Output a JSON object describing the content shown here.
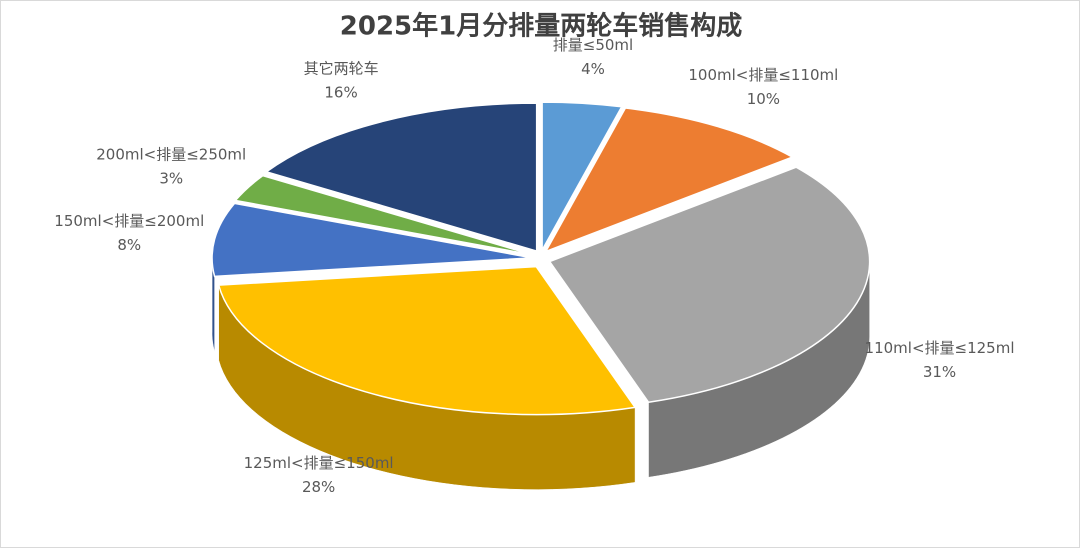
{
  "chart_data": {
    "type": "pie",
    "title": "2025年1月分排量两轮车销售构成",
    "categories": [
      "排量≤50ml",
      "100ml<排量≤110ml",
      "110ml<排量≤125ml",
      "125ml<排量≤150ml",
      "150ml<排量≤200ml",
      "200ml<排量≤250ml",
      "其它两轮车"
    ],
    "values": [
      4,
      10,
      31,
      28,
      8,
      3,
      16
    ],
    "value_labels": [
      "4%",
      "10%",
      "31%",
      "28%",
      "8%",
      "3%",
      "16%"
    ],
    "colors": [
      "#5b9bd5",
      "#ed7d31",
      "#a5a5a5",
      "#ffc000",
      "#4472c4",
      "#70ad47",
      "#264478"
    ]
  }
}
